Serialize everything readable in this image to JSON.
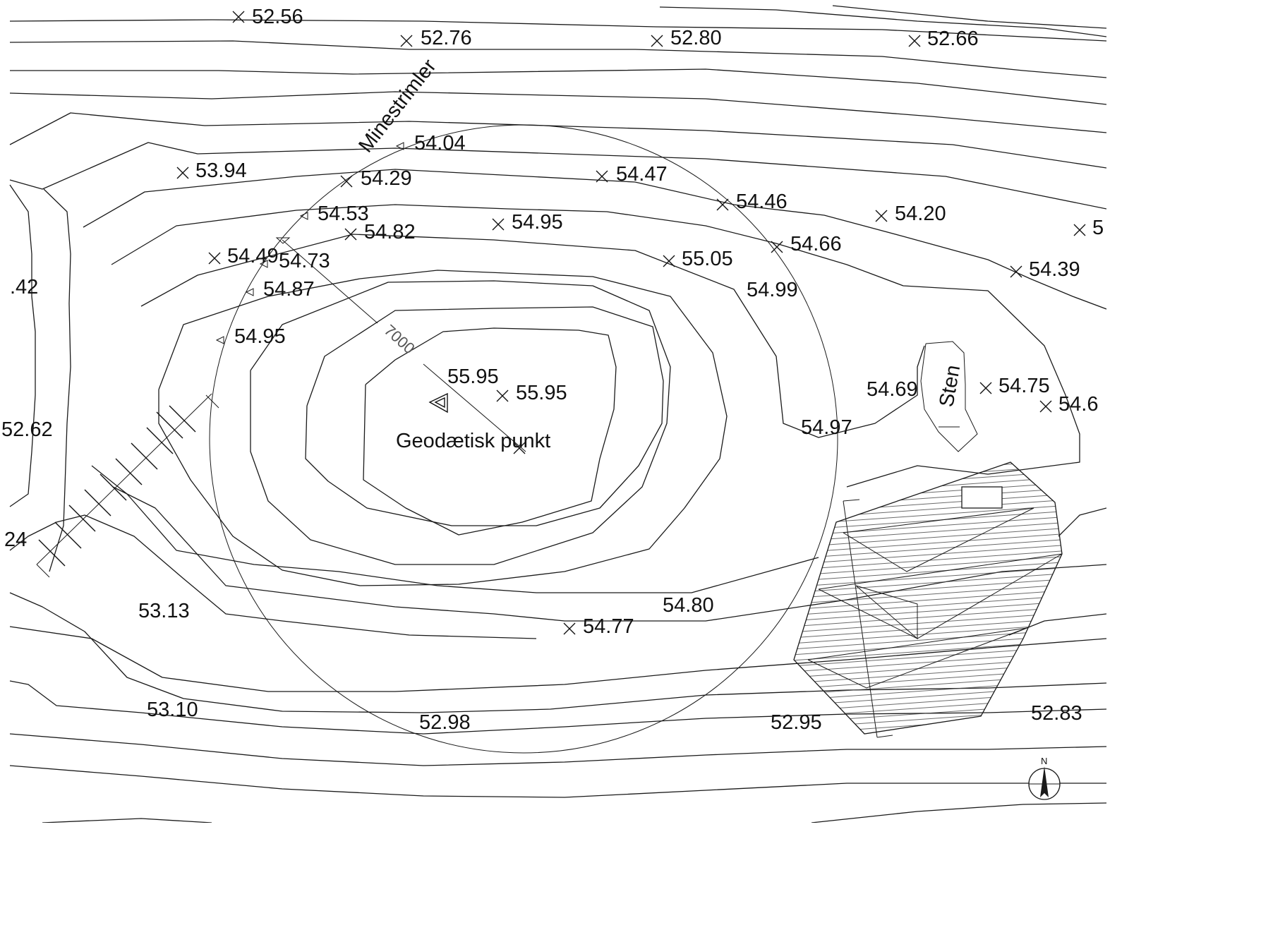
{
  "map": {
    "labels": {
      "mine_strip": "Minestrimler",
      "geodetic_point": "Geodætisk punkt",
      "stone": "Sten",
      "radius": "7000",
      "north": "N"
    },
    "spot_heights_x": [
      "52.56",
      "52.76",
      "52.80",
      "52.66",
      "53.94",
      "54.29",
      "54.47",
      "54.46",
      "54.20",
      "5",
      "54.82",
      "54.95",
      "54.66",
      "54.49",
      "55.05",
      "54.39",
      "55.95",
      "54.75",
      "54.6",
      "54.77"
    ],
    "spot_heights_triangle": [
      "54.04",
      "54.53",
      "54.73",
      "54.87",
      "54.95"
    ],
    "contour_values": [
      ".42",
      "54.99",
      "55.95",
      "54.69",
      "52.62",
      "54.97",
      "24",
      "53.13",
      "54.80",
      "53.10",
      "52.98",
      "52.95",
      "52.83"
    ]
  }
}
